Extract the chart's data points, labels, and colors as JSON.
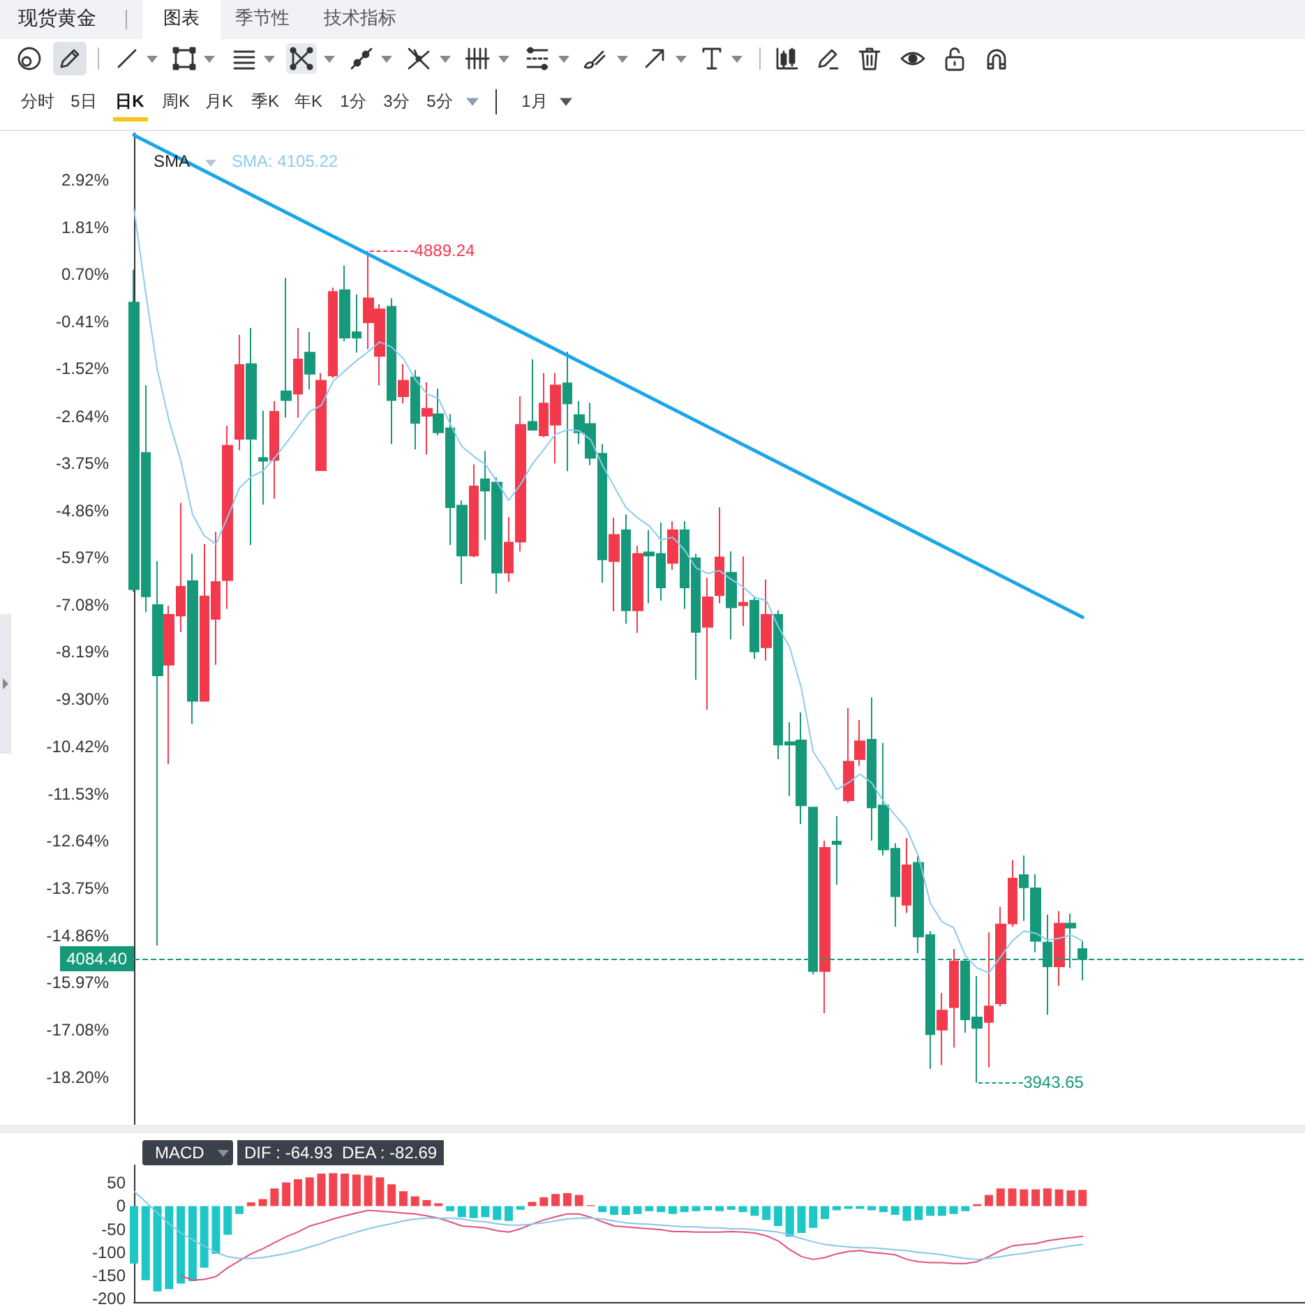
{
  "chart_data": [
    {
      "type": "candlestick",
      "title": "现货黄金",
      "categories": [
        null,
        null,
        null,
        null,
        null,
        null,
        null,
        null,
        null,
        null,
        null,
        null,
        null,
        null,
        null,
        null,
        null,
        null,
        null,
        null,
        null,
        null,
        null,
        null,
        null,
        null,
        null,
        null,
        null,
        null,
        null,
        null,
        null,
        null,
        null,
        null,
        null,
        null,
        null,
        null,
        null,
        null,
        null,
        null,
        null,
        null,
        null,
        null,
        null,
        null,
        null,
        null,
        null,
        null,
        null,
        null,
        null,
        null,
        null,
        null,
        null,
        null,
        null,
        null,
        null,
        null,
        null,
        null,
        null,
        null,
        null,
        null,
        null,
        null,
        null,
        null,
        null,
        null,
        null,
        null,
        null,
        null
      ],
      "ohlc": [
        [
          0.04,
          0.81,
          -6.77,
          -6.71
        ],
        [
          -3.5,
          -1.91,
          -7.25,
          -6.88
        ],
        [
          -7.08,
          -6.05,
          -15.1,
          -8.74
        ],
        [
          -8.49,
          -7.1,
          -10.83,
          -7.31
        ],
        [
          -7.33,
          -4.68,
          -7.72,
          -6.65
        ],
        [
          -6.52,
          -5.88,
          -9.88,
          -9.34
        ],
        [
          -9.34,
          -5.65,
          -9.36,
          -6.88
        ],
        [
          -7.41,
          -5.36,
          -8.49,
          -6.54
        ],
        [
          -6.5,
          -2.86,
          -7.17,
          -3.33
        ],
        [
          -3.17,
          -0.72,
          -3.44,
          -1.43
        ],
        [
          -1.41,
          -0.56,
          -5.67,
          -3.17
        ],
        [
          -3.62,
          -2.51,
          -4.72,
          -3.69
        ],
        [
          -3.67,
          -2.28,
          -4.58,
          -2.53
        ],
        [
          -2.05,
          0.62,
          -2.67,
          -2.26
        ],
        [
          -2.11,
          -0.56,
          -2.67,
          -1.3
        ],
        [
          -1.14,
          -0.66,
          -2.01,
          -1.64
        ],
        [
          -3.91,
          -1.62,
          -3.91,
          -1.8
        ],
        [
          -1.68,
          0.39,
          -1.74,
          0.29
        ],
        [
          0.33,
          0.91,
          -0.87,
          -0.79
        ],
        [
          -0.66,
          0.23,
          -1.14,
          -0.79
        ],
        [
          -0.43,
          1.25,
          -1.06,
          0.14
        ],
        [
          -1.22,
          0.0,
          -1.91,
          -0.12
        ],
        [
          -0.06,
          0.14,
          -3.29,
          -2.26
        ],
        [
          -2.17,
          -1.41,
          -2.34,
          -1.8
        ],
        [
          -1.72,
          -1.55,
          -3.42,
          -2.8
        ],
        [
          -2.63,
          -1.84,
          -3.54,
          -2.46
        ],
        [
          -2.59,
          -1.99,
          -3.09,
          -3.02
        ],
        [
          -2.92,
          -2.59,
          -5.67,
          -4.78
        ],
        [
          -4.74,
          -4.62,
          -6.59,
          -5.92
        ],
        [
          -5.92,
          -3.77,
          -5.96,
          -4.29
        ],
        [
          -4.12,
          -3.46,
          -5.55,
          -4.39
        ],
        [
          -4.2,
          -4.08,
          -6.81,
          -6.32
        ],
        [
          -6.32,
          -5.01,
          -6.54,
          -5.61
        ],
        [
          -5.59,
          -2.17,
          -5.82,
          -2.84
        ],
        [
          -2.77,
          -1.3,
          -2.98,
          -2.96
        ],
        [
          -3.09,
          -1.62,
          -3.13,
          -2.34
        ],
        [
          -2.84,
          -1.62,
          -3.75,
          -1.91
        ],
        [
          -1.86,
          -1.12,
          -3.93,
          -2.34
        ],
        [
          -2.61,
          -2.28,
          -3.29,
          -3.02
        ],
        [
          -2.82,
          -2.32,
          -3.79,
          -3.62
        ],
        [
          -3.52,
          -3.29,
          -6.56,
          -6.01
        ],
        [
          -6.05,
          -5.03,
          -7.23,
          -5.43
        ],
        [
          -5.32,
          -4.95,
          -7.52,
          -7.21
        ],
        [
          -7.21,
          -5.69,
          -7.74,
          -5.88
        ],
        [
          -5.84,
          -5.32,
          -7.04,
          -5.92
        ],
        [
          -5.88,
          -5.14,
          -6.98,
          -6.67
        ],
        [
          -6.09,
          -5.11,
          -6.25,
          -5.32
        ],
        [
          -5.32,
          -5.11,
          -7.17,
          -6.67
        ],
        [
          -5.98,
          -5.88,
          -8.84,
          -7.72
        ],
        [
          -7.6,
          -6.44,
          -9.55,
          -6.9
        ],
        [
          -6.85,
          -4.78,
          -7.04,
          -5.96
        ],
        [
          -6.32,
          -5.82,
          -7.89,
          -7.14
        ],
        [
          -7.09,
          -5.94,
          -7.58,
          -7.03
        ],
        [
          -6.98,
          -6.88,
          -8.35,
          -8.18
        ],
        [
          -8.08,
          -6.48,
          -8.39,
          -7.31
        ],
        [
          -7.31,
          -7.21,
          -10.71,
          -10.37
        ],
        [
          -10.31,
          -9.84,
          -11.58,
          -10.37
        ],
        [
          -10.27,
          -9.61,
          -12.24,
          -11.8
        ],
        [
          -11.85,
          -11.85,
          -15.78,
          -15.7
        ],
        [
          -15.7,
          -12.63,
          -16.69,
          -12.8
        ],
        [
          -12.65,
          -12.05,
          -13.67,
          -12.71
        ],
        [
          -11.68,
          -9.51,
          -11.74,
          -10.77
        ],
        [
          -10.71,
          -9.79,
          -10.87,
          -10.29
        ],
        [
          -10.25,
          -9.26,
          -12.63,
          -11.85
        ],
        [
          -11.8,
          -10.33,
          -12.98,
          -12.84
        ],
        [
          -12.82,
          -12.69,
          -14.66,
          -13.94
        ],
        [
          -14.14,
          -12.57,
          -14.33,
          -13.21
        ],
        [
          -13.15,
          -13.0,
          -15.28,
          -14.89
        ],
        [
          -14.85,
          -14.76,
          -18.0,
          -17.19
        ],
        [
          -17.08,
          -16.21,
          -17.91,
          -16.63
        ],
        [
          -16.55,
          -15.18,
          -17.5,
          -15.47
        ],
        [
          -15.47,
          -15.43,
          -17.15,
          -16.84
        ],
        [
          -16.79,
          -15.82,
          -18.33,
          -17.04
        ],
        [
          -16.9,
          -14.79,
          -17.97,
          -16.53
        ],
        [
          -16.46,
          -14.19,
          -16.53,
          -14.6
        ],
        [
          -14.58,
          -13.09,
          -14.66,
          -13.52
        ],
        [
          -13.44,
          -12.98,
          -14.52,
          -13.73
        ],
        [
          -13.75,
          -13.42,
          -15.26,
          -14.99
        ],
        [
          -15.03,
          -14.37,
          -16.73,
          -15.59
        ],
        [
          -15.59,
          -14.29,
          -16.05,
          -14.58
        ],
        [
          -14.58,
          -14.35,
          -15.63,
          -14.68
        ],
        [
          -15.18,
          -14.99,
          -15.92,
          -15.42
        ]
      ],
      "colors": [
        "#16997a",
        "#16997a",
        "#16997a",
        "#f23a4c",
        "#f23a4c",
        "#16997a",
        "#f23a4c",
        "#f23a4c",
        "#f23a4c",
        "#f23a4c",
        "#16997a",
        "#16997a",
        "#f23a4c",
        "#16997a",
        "#f23a4c",
        "#16997a",
        "#f23a4c",
        "#f23a4c",
        "#16997a",
        "#16997a",
        "#f23a4c",
        "#f23a4c",
        "#16997a",
        "#f23a4c",
        "#16997a",
        "#f23a4c",
        "#16997a",
        "#16997a",
        "#16997a",
        "#f23a4c",
        "#16997a",
        "#16997a",
        "#f23a4c",
        "#f23a4c",
        "#16997a",
        "#f23a4c",
        "#f23a4c",
        "#16997a",
        "#16997a",
        "#16997a",
        "#16997a",
        "#f23a4c",
        "#16997a",
        "#f23a4c",
        "#16997a",
        "#16997a",
        "#f23a4c",
        "#16997a",
        "#16997a",
        "#f23a4c",
        "#f23a4c",
        "#16997a",
        "#f23a4c",
        "#16997a",
        "#f23a4c",
        "#16997a",
        "#16997a",
        "#16997a",
        "#16997a",
        "#f23a4c",
        "#16997a",
        "#f23a4c",
        "#f23a4c",
        "#16997a",
        "#16997a",
        "#16997a",
        "#f23a4c",
        "#16997a",
        "#16997a",
        "#f23a4c",
        "#f23a4c",
        "#16997a",
        "#16997a",
        "#f23a4c",
        "#f23a4c",
        "#f23a4c",
        "#16997a",
        "#16997a",
        "#16997a",
        "#f23a4c",
        "#16997a",
        "#16997a"
      ],
      "series": [
        {
          "type": "line",
          "color": "#8dcaf0",
          "values": [
            2.24,
            0.27,
            -1.55,
            -2.75,
            -3.69,
            -4.95,
            -5.45,
            -5.65,
            -5.01,
            -4.33,
            -4.06,
            -3.93,
            -3.62,
            -3.27,
            -2.9,
            -2.53,
            -2.38,
            -1.82,
            -1.57,
            -1.33,
            -1.12,
            -0.89,
            -1.01,
            -1.28,
            -1.76,
            -2.11,
            -2.22,
            -2.82,
            -3.35,
            -3.58,
            -3.77,
            -4.18,
            -4.62,
            -4.25,
            -3.77,
            -3.42,
            -3.06,
            -2.96,
            -2.98,
            -3.19,
            -3.79,
            -4.29,
            -4.78,
            -5.03,
            -5.22,
            -5.55,
            -5.49,
            -5.78,
            -6.21,
            -6.34,
            -6.27,
            -6.48,
            -6.65,
            -6.9,
            -6.98,
            -7.58,
            -8.08,
            -9.05,
            -10.54,
            -10.95,
            -11.43,
            -11.27,
            -11.06,
            -11.27,
            -11.7,
            -12.03,
            -12.36,
            -13.0,
            -14.1,
            -14.54,
            -14.68,
            -15.34,
            -15.63,
            -15.74,
            -15.37,
            -14.99,
            -14.76,
            -14.81,
            -14.97,
            -14.93,
            -14.85,
            -14.99
          ]
        },
        {
          "type": "line",
          "color": "#1ba6e6",
          "values": [
            3.98,
            null,
            null,
            null,
            null,
            null,
            null,
            null,
            null,
            null,
            null,
            null,
            null,
            null,
            null,
            null,
            null,
            null,
            null,
            null,
            null,
            null,
            null,
            null,
            null,
            null,
            null,
            null,
            null,
            null,
            null,
            null,
            null,
            null,
            null,
            null,
            null,
            null,
            null,
            null,
            null,
            null,
            null,
            null,
            null,
            null,
            null,
            null,
            null,
            null,
            null,
            null,
            null,
            null,
            null,
            null,
            null,
            null,
            null,
            null,
            null,
            null,
            null,
            null,
            null,
            null,
            null,
            null,
            null,
            null,
            null,
            null,
            null,
            null,
            null,
            null,
            null,
            null,
            null,
            null,
            null,
            -7.37
          ]
        }
      ],
      "ylim": [
        -19.32,
        4.04
      ],
      "yticks": [
        {
          "value": -18.2,
          "label": "-18.20%"
        },
        {
          "value": -17.08,
          "label": "-17.08%"
        },
        {
          "value": -15.97,
          "label": "-15.97%"
        },
        {
          "value": -14.86,
          "label": "-14.86%"
        },
        {
          "value": -13.75,
          "label": "-13.75%"
        },
        {
          "value": -12.64,
          "label": "-12.64%"
        },
        {
          "value": -11.53,
          "label": "-11.53%"
        },
        {
          "value": -10.42,
          "label": "-10.42%"
        },
        {
          "value": -9.3,
          "label": "-9.30%"
        },
        {
          "value": -8.19,
          "label": "-8.19%"
        },
        {
          "value": -7.08,
          "label": "-7.08%"
        },
        {
          "value": -5.97,
          "label": "-5.97%"
        },
        {
          "value": -4.86,
          "label": "-4.86%"
        },
        {
          "value": -3.75,
          "label": "-3.75%"
        },
        {
          "value": -2.64,
          "label": "-2.64%"
        },
        {
          "value": -1.52,
          "label": "-1.52%"
        },
        {
          "value": -0.41,
          "label": "-0.41%"
        },
        {
          "value": 0.7,
          "label": "0.70%"
        },
        {
          "value": 1.81,
          "label": "1.81%"
        },
        {
          "value": 2.92,
          "label": "2.92%"
        }
      ],
      "ref_lines": [
        {
          "axis": "y",
          "value": -15.42,
          "color": "#16997a",
          "line_style": "dashed"
        }
      ],
      "annotations": [
        "图表",
        "季节性",
        "技术指标",
        "分时",
        "5日",
        "日K",
        "周K",
        "月K",
        "季K",
        "年K",
        "1分",
        "3分",
        "5分",
        "1月",
        "SMA",
        "SMA: 4105.22",
        "4889.24",
        "3943.65",
        "4084.40"
      ],
      "tick_labels": "y",
      "grid": false
    },
    {
      "type": "bar",
      "title": "MACD",
      "categories": [
        null,
        null,
        null,
        null,
        null,
        null,
        null,
        null,
        null,
        null,
        null,
        null,
        null,
        null,
        null,
        null,
        null,
        null,
        null,
        null,
        null,
        null,
        null,
        null,
        null,
        null,
        null,
        null,
        null,
        null,
        null,
        null,
        null,
        null,
        null,
        null,
        null,
        null,
        null,
        null,
        null,
        null,
        null,
        null,
        null,
        null,
        null,
        null,
        null,
        null,
        null,
        null,
        null,
        null,
        null,
        null,
        null,
        null,
        null,
        null,
        null,
        null,
        null,
        null,
        null,
        null,
        null,
        null,
        null,
        null,
        null,
        null,
        null,
        null,
        null,
        null,
        null,
        null,
        null,
        null,
        null,
        null
      ],
      "series": [
        {
          "type": "bar",
          "colors": [
            "#1ec6c6",
            "#1ec6c6",
            "#1ec6c6",
            "#1ec6c6",
            "#1ec6c6",
            "#1ec6c6",
            "#1ec6c6",
            "#1ec6c6",
            "#1ec6c6",
            "#1ec6c6",
            "#f2444e",
            "#f2444e",
            "#f2444e",
            "#f2444e",
            "#f2444e",
            "#f2444e",
            "#f2444e",
            "#f2444e",
            "#f2444e",
            "#f2444e",
            "#f2444e",
            "#f2444e",
            "#f2444e",
            "#f2444e",
            "#f2444e",
            "#f2444e",
            "#f2444e",
            "#1ec6c6",
            "#1ec6c6",
            "#1ec6c6",
            "#1ec6c6",
            "#1ec6c6",
            "#1ec6c6",
            "#1ec6c6",
            "#f2444e",
            "#f2444e",
            "#f2444e",
            "#f2444e",
            "#f2444e",
            "#f2444e",
            "#1ec6c6",
            "#1ec6c6",
            "#1ec6c6",
            "#1ec6c6",
            "#1ec6c6",
            "#1ec6c6",
            "#1ec6c6",
            "#1ec6c6",
            "#1ec6c6",
            "#1ec6c6",
            "#1ec6c6",
            "#1ec6c6",
            "#1ec6c6",
            "#1ec6c6",
            "#1ec6c6",
            "#1ec6c6",
            "#1ec6c6",
            "#1ec6c6",
            "#1ec6c6",
            "#1ec6c6",
            "#1ec6c6",
            "#1ec6c6",
            "#1ec6c6",
            "#1ec6c6",
            "#1ec6c6",
            "#1ec6c6",
            "#1ec6c6",
            "#1ec6c6",
            "#1ec6c6",
            "#1ec6c6",
            "#1ec6c6",
            "#1ec6c6",
            "#f2444e",
            "#f2444e",
            "#f2444e",
            "#f2444e",
            "#f2444e",
            "#f2444e",
            "#f2444e",
            "#f2444e",
            "#f2444e",
            "#f2444e"
          ],
          "values": [
            -124,
            -160,
            -184,
            -179,
            -167,
            -162,
            -133,
            -103,
            -62,
            -17,
            8,
            15,
            38,
            51,
            58,
            62,
            70,
            71,
            70,
            68,
            66,
            62,
            47,
            32,
            21,
            13,
            6,
            -11,
            -24,
            -26,
            -24,
            -30,
            -32,
            -8,
            9,
            19,
            26,
            28,
            24,
            2,
            -13,
            -19,
            -19,
            -17,
            -11,
            -13,
            -17,
            -13,
            -11,
            -9,
            -11,
            -8,
            -13,
            -21,
            -30,
            -43,
            -66,
            -58,
            -47,
            -28,
            -9,
            -6,
            -6,
            -9,
            -13,
            -19,
            -32,
            -30,
            -21,
            -21,
            -17,
            -11,
            4,
            24,
            38,
            38,
            36,
            36,
            38,
            36,
            34,
            35
          ]
        },
        {
          "type": "line",
          "color": "#e0517c",
          "values": [
            null,
            null,
            null,
            null,
            -150,
            -160,
            -158,
            -152,
            -133,
            -118,
            -103,
            -92,
            -79,
            -66,
            -56,
            -43,
            -36,
            -28,
            -21,
            -15,
            -9,
            -11,
            -13,
            -15,
            -17,
            -21,
            -26,
            -34,
            -43,
            -45,
            -47,
            -53,
            -56,
            -49,
            -39,
            -30,
            -23,
            -17,
            -17,
            -24,
            -34,
            -43,
            -45,
            -47,
            -49,
            -51,
            -55,
            -55,
            -56,
            -56,
            -56,
            -55,
            -56,
            -58,
            -64,
            -75,
            -94,
            -109,
            -115,
            -111,
            -103,
            -98,
            -96,
            -100,
            -102,
            -105,
            -115,
            -120,
            -122,
            -122,
            -124,
            -124,
            -120,
            -109,
            -96,
            -86,
            -83,
            -81,
            -75,
            -71,
            -68,
            -65
          ]
        },
        {
          "type": "line",
          "color": "#86c6ea",
          "values": [
            32,
            9,
            -15,
            -38,
            -58,
            -73,
            -86,
            -100,
            -109,
            -113,
            -113,
            -111,
            -107,
            -102,
            -96,
            -88,
            -81,
            -71,
            -64,
            -56,
            -49,
            -43,
            -38,
            -32,
            -28,
            -26,
            -26,
            -26,
            -28,
            -32,
            -34,
            -38,
            -41,
            -41,
            -39,
            -36,
            -32,
            -28,
            -26,
            -26,
            -28,
            -32,
            -36,
            -38,
            -39,
            -41,
            -43,
            -45,
            -45,
            -47,
            -47,
            -49,
            -49,
            -51,
            -53,
            -56,
            -62,
            -70,
            -77,
            -83,
            -86,
            -88,
            -90,
            -90,
            -92,
            -94,
            -96,
            -100,
            -102,
            -105,
            -109,
            -113,
            -115,
            -113,
            -109,
            -105,
            -102,
            -98,
            -94,
            -90,
            -86,
            -83
          ]
        }
      ],
      "ylim": [
        -207,
        88
      ],
      "yticks": [
        -200,
        -150,
        -100,
        -50,
        0,
        50
      ],
      "annotations": [
        "DIF : -64.93  DEA : -82.69"
      ],
      "tick_labels": "y",
      "grid": false
    }
  ]
}
